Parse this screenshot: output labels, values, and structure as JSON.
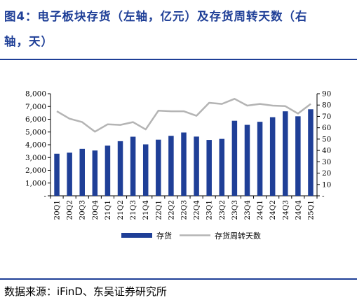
{
  "figure": {
    "title_line1": "图4：电子板块存货（左轴，亿元）及存货周转天数（右",
    "title_line2": "轴，天）",
    "source": "数据来源：iFinD、东吴证券研究所"
  },
  "chart_data": {
    "type": "bar",
    "categories": [
      "20Q1",
      "20Q2",
      "20Q3",
      "20Q4",
      "21Q1",
      "21Q2",
      "21Q3",
      "21Q4",
      "22Q1",
      "22Q2",
      "22Q3",
      "22Q4",
      "23Q1",
      "23Q2",
      "23Q3",
      "23Q4",
      "24Q1",
      "24Q2",
      "24Q3",
      "24Q4",
      "25Q1"
    ],
    "series": [
      {
        "name": "存货",
        "type": "bar",
        "axis": "left",
        "color": "#1f3f97",
        "values": [
          3300,
          3380,
          3680,
          3550,
          3930,
          4280,
          4630,
          4030,
          4400,
          4700,
          4960,
          4640,
          4380,
          4460,
          5880,
          5560,
          5800,
          6160,
          6620,
          6230,
          6780
        ]
      },
      {
        "name": "存货周转天数",
        "type": "line",
        "axis": "right",
        "color": "#b4b4b4",
        "values": [
          74.5,
          68,
          65,
          56.5,
          63,
          62.5,
          65,
          58.5,
          75,
          74.5,
          74.5,
          70.5,
          82,
          81,
          85.5,
          79.5,
          81,
          79.5,
          79,
          72.5,
          81
        ]
      }
    ],
    "y_left": {
      "min": 0,
      "max": 8000,
      "step": 1000,
      "tick_labels": [
        "-",
        "1,000",
        "2,000",
        "3,000",
        "4,000",
        "5,000",
        "6,000",
        "7,000",
        "8,000"
      ]
    },
    "y_right": {
      "min": 0,
      "max": 90,
      "step": 10,
      "tick_labels": [
        "-",
        "10",
        "20",
        "30",
        "40",
        "50",
        "60",
        "70",
        "80",
        "90"
      ]
    },
    "grid": false,
    "legend_position": "bottom"
  }
}
